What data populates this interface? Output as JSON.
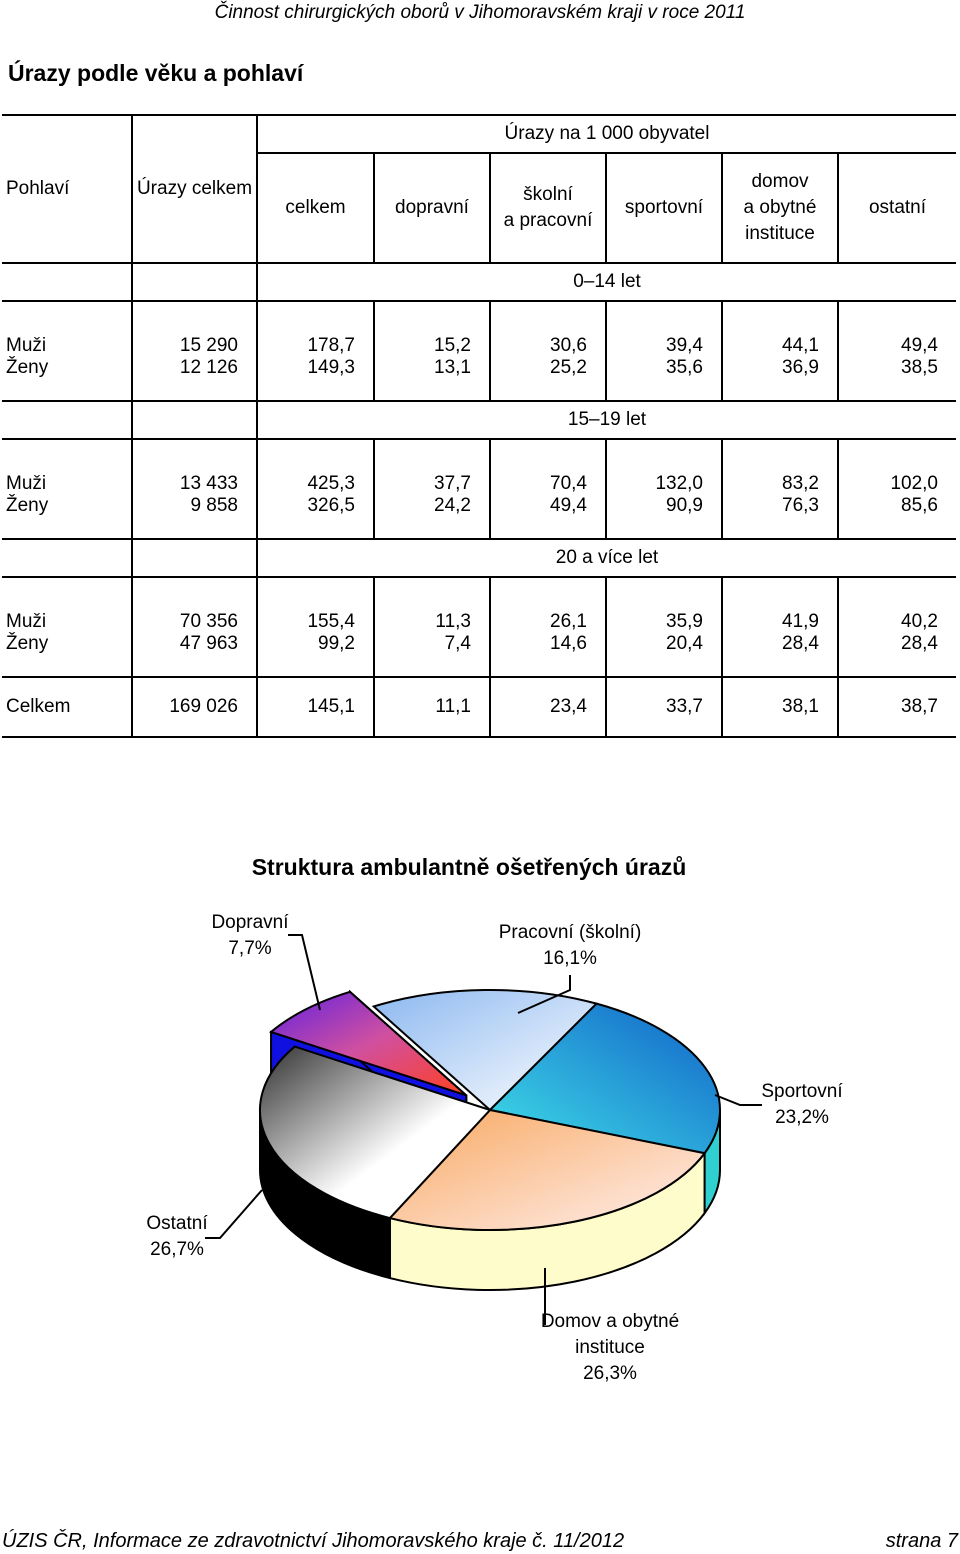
{
  "header": "Činnost chirurgických oborů v Jihomoravském kraji v roce 2011",
  "title": "Úrazy podle věku a pohlaví",
  "table": {
    "group_header": "Úrazy na 1 000 obyvatel",
    "col_pohlavi": "Pohlaví",
    "col_celkem_urazy": "Úrazy celkem",
    "cols": [
      "celkem",
      "dopravní",
      "školní\na pracovní",
      "sportovní",
      "domov\na obytné\ninstituce",
      "ostatní"
    ],
    "sections": [
      {
        "label": "0–14 let",
        "rows": [
          {
            "sex": "Muži",
            "total": "15 290",
            "values": [
              "178,7",
              "15,2",
              "30,6",
              "39,4",
              "44,1",
              "49,4"
            ]
          },
          {
            "sex": "Ženy",
            "total": "12 126",
            "values": [
              "149,3",
              "13,1",
              "25,2",
              "35,6",
              "36,9",
              "38,5"
            ]
          }
        ]
      },
      {
        "label": "15–19 let",
        "rows": [
          {
            "sex": "Muži",
            "total": "13 433",
            "values": [
              "425,3",
              "37,7",
              "70,4",
              "132,0",
              "83,2",
              "102,0"
            ]
          },
          {
            "sex": "Ženy",
            "total": "9 858",
            "values": [
              "326,5",
              "24,2",
              "49,4",
              "90,9",
              "76,3",
              "85,6"
            ]
          }
        ]
      },
      {
        "label": "20 a více let",
        "rows": [
          {
            "sex": "Muži",
            "total": "70 356",
            "values": [
              "155,4",
              "11,3",
              "26,1",
              "35,9",
              "41,9",
              "40,2"
            ]
          },
          {
            "sex": "Ženy",
            "total": "47 963",
            "values": [
              "99,2",
              "7,4",
              "14,6",
              "20,4",
              "28,4",
              "28,4"
            ]
          }
        ]
      }
    ],
    "total_row": {
      "sex": "Celkem",
      "total": "169 026",
      "values": [
        "145,1",
        "11,1",
        "23,4",
        "33,7",
        "38,1",
        "38,7"
      ]
    }
  },
  "chart_data": {
    "type": "pie",
    "title": "Struktura ambulantně ošetřených úrazů",
    "slices": [
      {
        "name": "Pracovní (školní)",
        "value": 16.1,
        "label": "Pracovní (školní)",
        "pct": "16,1%",
        "color": "#a8c8f0"
      },
      {
        "name": "Sportovní",
        "value": 23.2,
        "label": "Sportovní",
        "pct": "23,2%",
        "color": "#1e8fd8"
      },
      {
        "name": "Domov a obytné instituce",
        "value": 26.3,
        "label": "Domov a obytné\ninstituce",
        "pct": "26,3%",
        "color": "#f8c890"
      },
      {
        "name": "Ostatní",
        "value": 26.7,
        "label": "Ostatní",
        "pct": "26,7%",
        "color": "#d8d8d8"
      },
      {
        "name": "Dopravní",
        "value": 7.7,
        "label": "Dopravní",
        "pct": "7,7%",
        "color": "#7a3ae0"
      }
    ]
  },
  "footer": {
    "left": "ÚZIS ČR, Informace ze zdravotnictví Jihomoravského kraje č. 11/2012",
    "right": "strana 7"
  }
}
